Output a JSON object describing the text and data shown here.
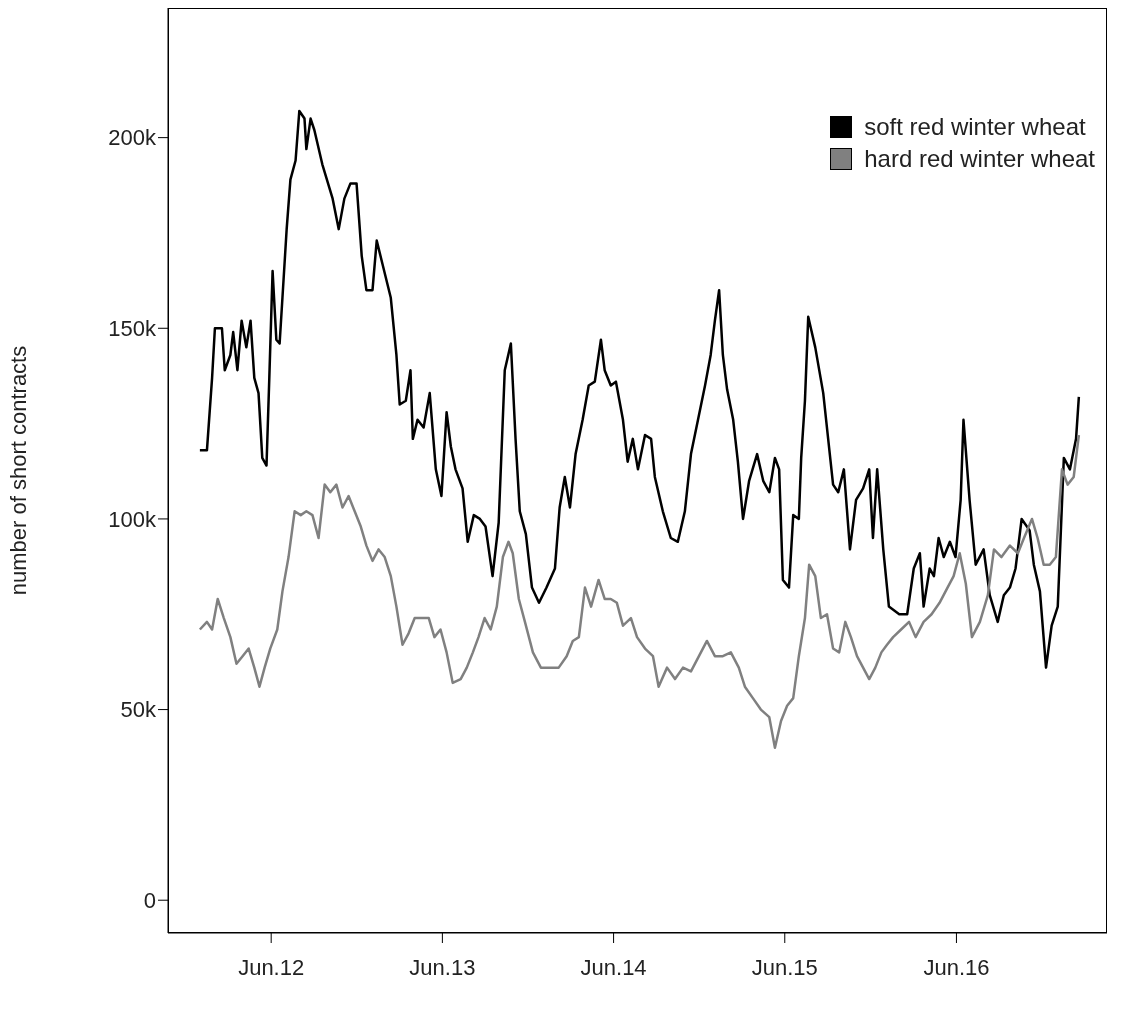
{
  "chart_data": {
    "type": "line",
    "ylabel": "number of short contracts",
    "xlim": [
      "2011-10-25",
      "2017-04-18"
    ],
    "xticks": [
      {
        "value": "2012-06-01",
        "label": "Jun.12"
      },
      {
        "value": "2013-06-01",
        "label": "Jun.13"
      },
      {
        "value": "2014-06-01",
        "label": "Jun.14"
      },
      {
        "value": "2015-06-01",
        "label": "Jun.15"
      },
      {
        "value": "2016-06-01",
        "label": "Jun.16"
      }
    ],
    "ylim": [
      -8600,
      234000
    ],
    "yticks": [
      {
        "value": 0,
        "label": "0"
      },
      {
        "value": 50000,
        "label": "50k"
      },
      {
        "value": 100000,
        "label": "100k"
      },
      {
        "value": 150000,
        "label": "150k"
      },
      {
        "value": 200000,
        "label": "200k"
      }
    ],
    "legend": "top right",
    "line_style": "solid",
    "series": [
      {
        "name": "soft red winter wheat",
        "color": "#000000",
        "x": [
          "2012-01-01",
          "2012-01-16",
          "2012-01-27",
          "2012-02-02",
          "2012-02-17",
          "2012-02-23",
          "2012-03-06",
          "2012-03-12",
          "2012-03-21",
          "2012-03-30",
          "2012-04-09",
          "2012-04-18",
          "2012-04-26",
          "2012-05-05",
          "2012-05-13",
          "2012-05-22",
          "2012-05-28",
          "2012-06-04",
          "2012-06-12",
          "2012-06-19",
          "2012-06-25",
          "2012-07-04",
          "2012-07-12",
          "2012-07-23",
          "2012-07-31",
          "2012-08-11",
          "2012-08-15",
          "2012-08-24",
          "2012-09-01",
          "2012-09-18",
          "2012-10-10",
          "2012-10-23",
          "2012-11-04",
          "2012-11-17",
          "2012-11-30",
          "2012-12-11",
          "2012-12-21",
          "2013-01-03",
          "2013-01-12",
          "2013-01-24",
          "2013-02-11",
          "2013-02-23",
          "2013-03-02",
          "2013-03-15",
          "2013-03-25",
          "2013-03-30",
          "2013-04-09",
          "2013-04-22",
          "2013-05-05",
          "2013-05-18",
          "2013-05-30",
          "2013-06-10",
          "2013-06-19",
          "2013-06-29",
          "2013-07-14",
          "2013-07-25",
          "2013-08-07",
          "2013-08-20",
          "2013-09-01",
          "2013-09-16",
          "2013-09-29",
          "2013-10-12",
          "2013-10-25",
          "2013-11-04",
          "2013-11-13",
          "2013-11-26",
          "2013-12-09",
          "2013-12-24",
          "2014-01-09",
          "2014-01-27",
          "2014-02-06",
          "2014-02-17",
          "2014-02-28",
          "2014-03-12",
          "2014-03-27",
          "2014-04-09",
          "2014-04-22",
          "2014-05-05",
          "2014-05-13",
          "2014-05-26",
          "2014-06-06",
          "2014-06-21",
          "2014-07-01",
          "2014-07-12",
          "2014-07-23",
          "2014-08-07",
          "2014-08-20",
          "2014-08-28",
          "2014-09-14",
          "2014-10-01",
          "2014-10-16",
          "2014-10-31",
          "2014-11-13",
          "2014-11-28",
          "2014-12-13",
          "2014-12-25",
          "2015-01-03",
          "2015-01-12",
          "2015-01-20",
          "2015-01-29",
          "2015-02-11",
          "2015-02-21",
          "2015-03-04",
          "2015-03-17",
          "2015-04-03",
          "2015-04-16",
          "2015-04-29",
          "2015-05-11",
          "2015-05-20",
          "2015-05-28",
          "2015-06-10",
          "2015-06-19",
          "2015-07-01",
          "2015-07-06",
          "2015-07-14",
          "2015-07-21",
          "2015-08-05",
          "2015-08-22",
          "2015-09-12",
          "2015-09-23",
          "2015-10-05",
          "2015-10-18",
          "2015-10-31",
          "2015-11-15",
          "2015-11-28",
          "2015-12-06",
          "2015-12-15",
          "2015-12-28",
          "2016-01-09",
          "2016-01-31",
          "2016-02-17",
          "2016-03-02",
          "2016-03-15",
          "2016-03-23",
          "2016-04-05",
          "2016-04-14",
          "2016-04-24",
          "2016-05-05",
          "2016-05-18",
          "2016-05-30",
          "2016-06-10",
          "2016-06-16",
          "2016-06-29",
          "2016-07-12",
          "2016-07-29",
          "2016-08-11",
          "2016-08-28",
          "2016-09-10",
          "2016-09-23",
          "2016-10-05",
          "2016-10-18",
          "2016-11-04",
          "2016-11-13",
          "2016-11-26",
          "2016-12-09",
          "2016-12-21",
          "2017-01-03",
          "2017-01-16",
          "2017-01-29",
          "2017-02-11",
          "2017-02-17"
        ],
        "values": [
          118000,
          118000,
          137000,
          150000,
          150000,
          139000,
          143000,
          149000,
          139000,
          152000,
          145000,
          152000,
          137000,
          133000,
          116000,
          114000,
          137000,
          165000,
          147000,
          146000,
          158000,
          176000,
          189000,
          194000,
          207000,
          205000,
          197000,
          205000,
          202000,
          193000,
          184000,
          176000,
          184000,
          188000,
          188000,
          169000,
          160000,
          160000,
          173000,
          167000,
          158000,
          143000,
          130000,
          131000,
          139000,
          121000,
          126000,
          124000,
          133000,
          113000,
          106000,
          128000,
          119000,
          113000,
          108000,
          94000,
          101000,
          100000,
          98000,
          85000,
          99000,
          139000,
          146000,
          121000,
          102000,
          96000,
          82000,
          78000,
          82000,
          87000,
          103000,
          111000,
          103000,
          117000,
          126000,
          135000,
          136000,
          147000,
          139000,
          135000,
          136000,
          126000,
          115000,
          121000,
          113000,
          122000,
          121000,
          111000,
          102000,
          95000,
          94000,
          102000,
          117000,
          126000,
          135000,
          143000,
          152000,
          160000,
          143000,
          134000,
          126000,
          115000,
          100000,
          110000,
          117000,
          110000,
          107000,
          116000,
          113000,
          84000,
          82000,
          101000,
          100000,
          116000,
          131000,
          153000,
          145000,
          133000,
          109000,
          107000,
          113000,
          92000,
          105000,
          108000,
          113000,
          95000,
          113000,
          92000,
          77000,
          75000,
          75000,
          87000,
          91000,
          77000,
          87000,
          85000,
          95000,
          90000,
          94000,
          90000,
          105000,
          126000,
          105000,
          88000,
          92000,
          80000,
          73000,
          80000,
          82000,
          87000,
          100000,
          97000,
          88000,
          81000,
          61000,
          72000,
          77000,
          116000,
          113000,
          121000,
          132000
        ]
      },
      {
        "name": "hard red winter wheat",
        "color": "#808080",
        "x": [
          "2012-01-01",
          "2012-01-16",
          "2012-01-27",
          "2012-02-08",
          "2012-02-21",
          "2012-03-06",
          "2012-03-19",
          "2012-04-01",
          "2012-04-14",
          "2012-04-26",
          "2012-05-07",
          "2012-05-18",
          "2012-05-30",
          "2012-06-14",
          "2012-06-25",
          "2012-07-08",
          "2012-07-21",
          "2012-08-03",
          "2012-08-15",
          "2012-08-28",
          "2012-09-10",
          "2012-09-23",
          "2012-10-05",
          "2012-10-18",
          "2012-10-31",
          "2012-11-13",
          "2012-11-26",
          "2012-12-09",
          "2012-12-21",
          "2013-01-03",
          "2013-01-16",
          "2013-01-29",
          "2013-02-11",
          "2013-02-23",
          "2013-03-08",
          "2013-03-21",
          "2013-04-03",
          "2013-04-16",
          "2013-05-03",
          "2013-05-15",
          "2013-05-28",
          "2013-06-10",
          "2013-06-23",
          "2013-07-10",
          "2013-07-23",
          "2013-08-05",
          "2013-08-17",
          "2013-08-30",
          "2013-09-12",
          "2013-09-25",
          "2013-10-08",
          "2013-10-20",
          "2013-10-29",
          "2013-11-11",
          "2013-11-24",
          "2013-12-11",
          "2013-12-28",
          "2014-01-14",
          "2014-02-04",
          "2014-02-21",
          "2014-03-06",
          "2014-03-19",
          "2014-04-01",
          "2014-04-14",
          "2014-04-30",
          "2014-05-13",
          "2014-05-26",
          "2014-06-08",
          "2014-06-21",
          "2014-07-08",
          "2014-07-21",
          "2014-08-07",
          "2014-08-24",
          "2014-09-05",
          "2014-09-23",
          "2014-10-10",
          "2014-10-27",
          "2014-11-13",
          "2014-11-30",
          "2014-12-17",
          "2015-01-03",
          "2015-01-20",
          "2015-02-06",
          "2015-02-23",
          "2015-03-08",
          "2015-03-25",
          "2015-04-11",
          "2015-04-29",
          "2015-05-11",
          "2015-05-24",
          "2015-06-06",
          "2015-06-19",
          "2015-07-01",
          "2015-07-14",
          "2015-07-23",
          "2015-08-05",
          "2015-08-17",
          "2015-08-30",
          "2015-09-12",
          "2015-09-25",
          "2015-10-08",
          "2015-10-20",
          "2015-11-02",
          "2015-11-15",
          "2015-11-28",
          "2015-12-11",
          "2015-12-24",
          "2016-01-05",
          "2016-01-18",
          "2016-02-04",
          "2016-02-21",
          "2016-03-06",
          "2016-03-23",
          "2016-04-09",
          "2016-04-26",
          "2016-05-13",
          "2016-05-26",
          "2016-06-08",
          "2016-06-21",
          "2016-07-04",
          "2016-07-21",
          "2016-08-07",
          "2016-08-20",
          "2016-09-05",
          "2016-09-23",
          "2016-10-10",
          "2016-10-23",
          "2016-11-09",
          "2016-11-21",
          "2016-12-04",
          "2016-12-17",
          "2016-12-30",
          "2017-01-12",
          "2017-01-24",
          "2017-02-06",
          "2017-02-17"
        ],
        "values": [
          71000,
          73000,
          71000,
          79000,
          74000,
          69000,
          62000,
          64000,
          66000,
          61000,
          56000,
          61000,
          66000,
          71000,
          81000,
          90000,
          102000,
          101000,
          102000,
          101000,
          95000,
          109000,
          107000,
          109000,
          103000,
          106000,
          102000,
          98000,
          93000,
          89000,
          92000,
          90000,
          85000,
          77000,
          67000,
          70000,
          74000,
          74000,
          74000,
          69000,
          71000,
          65000,
          57000,
          58000,
          61000,
          65000,
          69000,
          74000,
          71000,
          77000,
          90000,
          94000,
          91000,
          79000,
          73000,
          65000,
          61000,
          61000,
          61000,
          64000,
          68000,
          69000,
          82000,
          77000,
          84000,
          79000,
          79000,
          78000,
          72000,
          74000,
          69000,
          66000,
          64000,
          56000,
          61000,
          58000,
          61000,
          60000,
          64000,
          68000,
          64000,
          64000,
          65000,
          61000,
          56000,
          53000,
          50000,
          48000,
          40000,
          47000,
          51000,
          53000,
          64000,
          74000,
          88000,
          85000,
          74000,
          75000,
          66000,
          65000,
          73000,
          69000,
          64000,
          61000,
          58000,
          61000,
          65000,
          67000,
          69000,
          71000,
          73000,
          69000,
          73000,
          75000,
          78000,
          82000,
          85000,
          91000,
          83000,
          69000,
          73000,
          80000,
          92000,
          90000,
          93000,
          91000,
          95000,
          100000,
          95000,
          88000,
          88000,
          90000,
          113000,
          109000,
          111000,
          122000
        ]
      }
    ]
  }
}
